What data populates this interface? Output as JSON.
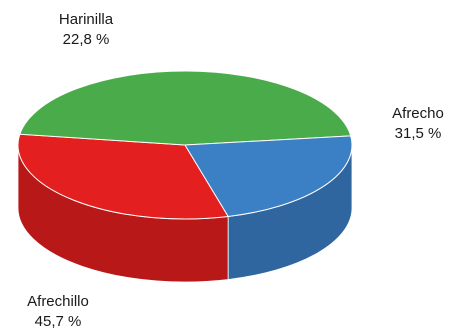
{
  "chart_data": {
    "type": "pie",
    "style": "3d",
    "title": "",
    "slices": [
      {
        "label": "Afrecho",
        "value": 31.5,
        "display": "31,5 %",
        "color": "#e41f1f",
        "side_color": "#b81818"
      },
      {
        "label": "Afrechillo",
        "value": 45.7,
        "display": "45,7 %",
        "color": "#4aab4a",
        "side_color": "#3d8c3d"
      },
      {
        "label": "Harinilla",
        "value": 22.8,
        "display": "22,8 %",
        "color": "#3b7fc4",
        "side_color": "#2f66a0"
      }
    ],
    "legend": "none"
  }
}
